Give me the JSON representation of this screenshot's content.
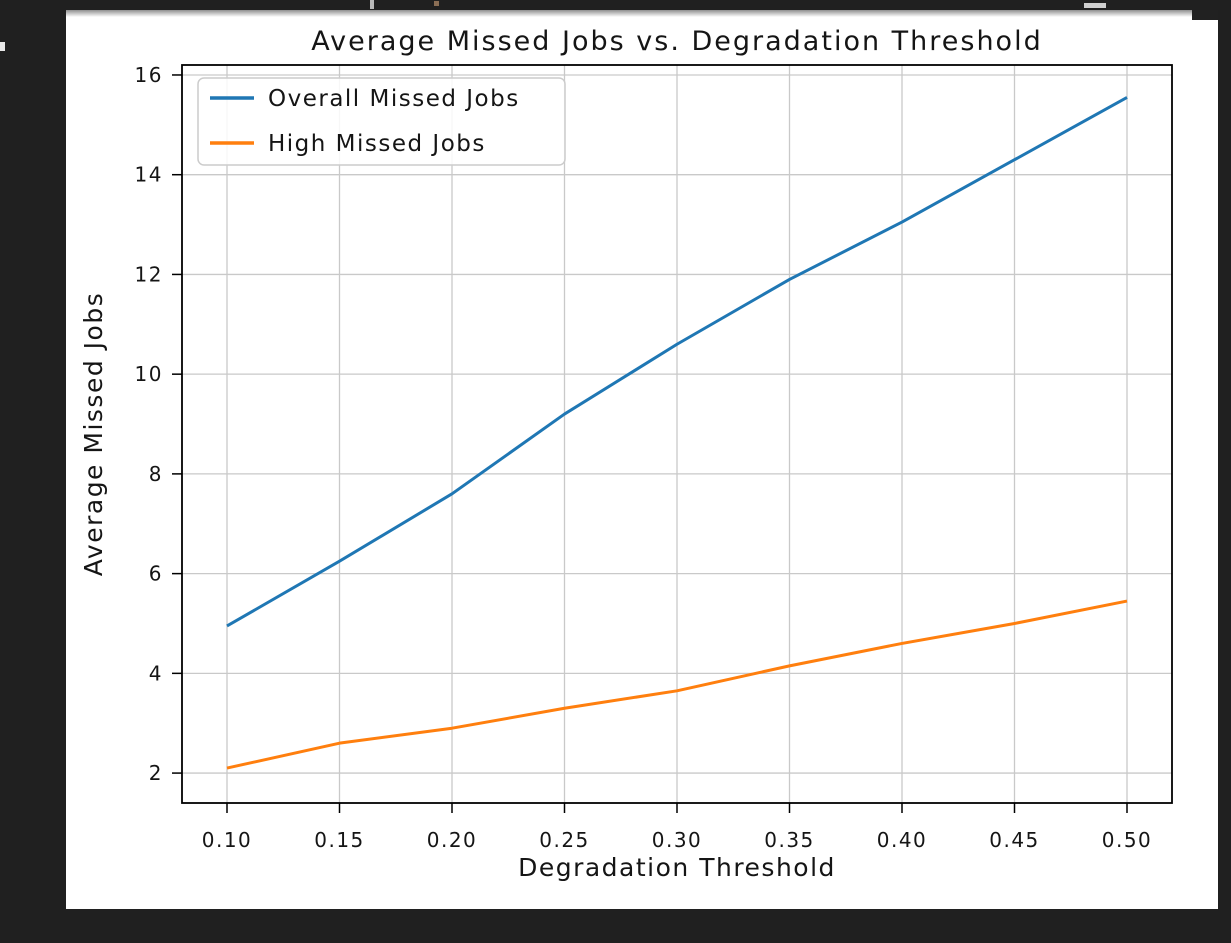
{
  "window": {
    "background_color": "#202020",
    "figure_background_color": "#ffffff"
  },
  "chart_data": {
    "type": "line",
    "title": "Average Missed Jobs vs. Degradation Threshold",
    "xlabel": "Degradation Threshold",
    "ylabel": "Average Missed Jobs",
    "x": [
      0.1,
      0.15,
      0.2,
      0.25,
      0.3,
      0.35,
      0.4,
      0.45,
      0.5
    ],
    "series": [
      {
        "name": "Overall Missed Jobs",
        "color": "#1f77b4",
        "values": [
          4.95,
          6.25,
          7.6,
          9.2,
          10.6,
          11.9,
          13.05,
          14.3,
          15.55
        ]
      },
      {
        "name": "High Missed Jobs",
        "color": "#ff7f0e",
        "values": [
          2.1,
          2.6,
          2.9,
          3.3,
          3.65,
          4.15,
          4.6,
          5.0,
          5.45
        ]
      }
    ],
    "xticks": [
      "0.10",
      "0.15",
      "0.20",
      "0.25",
      "0.30",
      "0.35",
      "0.40",
      "0.45",
      "0.50"
    ],
    "yticks": [
      "2",
      "4",
      "6",
      "8",
      "10",
      "12",
      "14",
      "16"
    ],
    "xlim": [
      0.08,
      0.52
    ],
    "ylim": [
      1.4,
      16.2
    ],
    "grid": true,
    "grid_color": "#c9c9c9",
    "spine_color": "#000000",
    "legend_position": "upper left",
    "legend_border_color": "#cccccc"
  }
}
